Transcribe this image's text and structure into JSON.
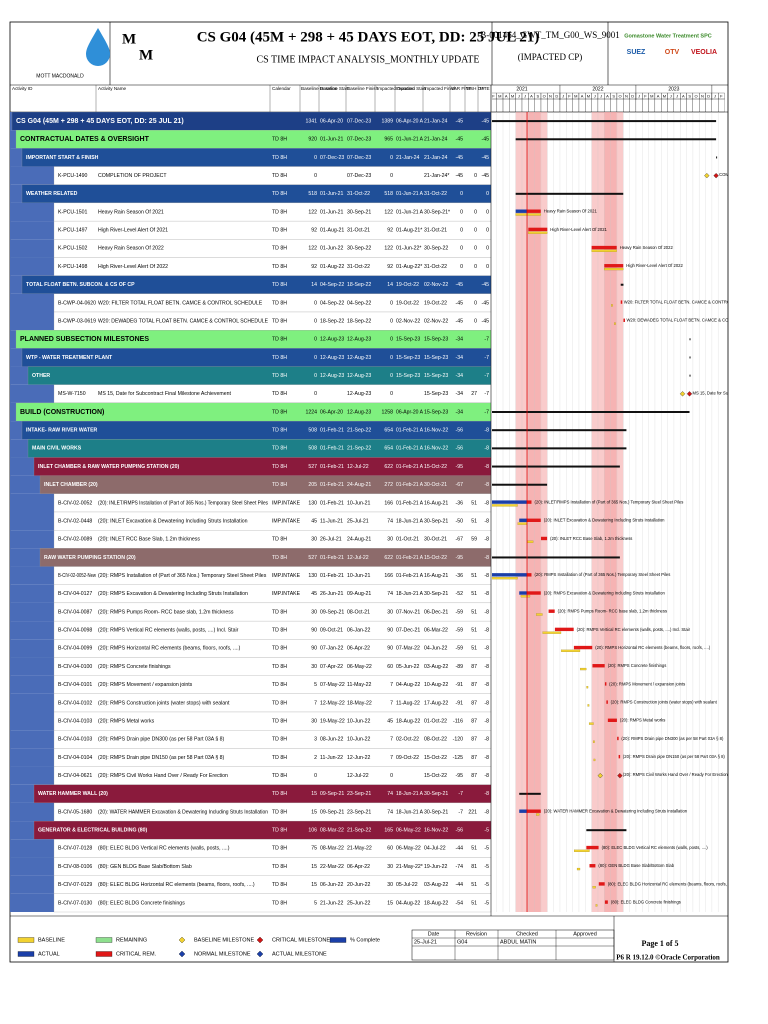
{
  "header": {
    "logo_letters": [
      "M",
      "M"
    ],
    "logo_name": "MOTT MACDONALD",
    "title": "CS G04 (45M + 298 + 45 DAYS EOT, DD: 25 JUL 21)",
    "subtitle": "CS TIME IMPACT ANALYSIS_MONTHLY UPDATE",
    "doc_id": "B-001464_GWT_TM_G00_WS_9001",
    "doc_status": "(IMPACTED CP)",
    "partners": [
      "Gomastone Water Treatment SPC",
      "SUEZ",
      "OTV",
      "VEOLIA"
    ]
  },
  "columns": [
    "Activity ID",
    "Activity Name",
    "Calendar",
    "Baseline Duration",
    "Baseline Start",
    "Baseline Finish",
    "Impacted Duration",
    "Impacted Start",
    "Impacted Finish",
    "VAR FINISH DATE",
    "TF",
    "TF"
  ],
  "timeline": {
    "years": [
      "2021",
      "2022",
      "2023",
      "2024"
    ],
    "months": [
      "F",
      "M",
      "A",
      "M",
      "J",
      "J",
      "A",
      "S",
      "O",
      "N",
      "D",
      "J",
      "F",
      "M",
      "A",
      "M",
      "J",
      "J",
      "A",
      "S",
      "O",
      "N",
      "D",
      "J",
      "F",
      "M",
      "A",
      "M",
      "J",
      "J",
      "A",
      "S",
      "O",
      "N",
      "D",
      "J",
      "F"
    ]
  },
  "rows": [
    {
      "fill": "#1d3f86",
      "cells": [
        null,
        "CS G04 (45M + 298 + 45 DAYS EOT, DD: 25 JUL 21)",
        null,
        1341,
        "06-Apr-20",
        "07-Dec-23",
        1389,
        "06-Apr-20 A",
        "21-Jan-24",
        -45,
        null,
        -45
      ]
    },
    {
      "fill": "#7ff07f",
      "cells": [
        null,
        "CONTRACTUAL DATES & OVERSIGHT",
        "TD 8H",
        920,
        "01-Jun-21",
        "07-Dec-23",
        965,
        "01-Jun-21 A",
        "21-Jan-24",
        -45,
        null,
        -45
      ]
    },
    {
      "fill": "#1f4f98",
      "cells": [
        null,
        "IMPORTANT START & FINISH",
        "TD 8H",
        0,
        "07-Dec-23",
        "07-Dec-23",
        0,
        "21-Jan-24",
        "21-Jan-24",
        -45,
        null,
        -45
      ]
    },
    {
      "cells": [
        "K-PCU-1490",
        "COMPLETION OF PROJECT",
        "TD 8H",
        0,
        null,
        "07-Dec-23",
        0,
        null,
        "21-Jan-24*",
        -45,
        0,
        -45
      ]
    },
    {
      "fill": "#1f4f98",
      "cells": [
        null,
        "WEATHER RELATED",
        "TD 8H",
        518,
        "01-Jun-21",
        "31-Oct-22",
        518,
        "01-Jun-21 A",
        "31-Oct-22",
        0,
        null,
        0
      ]
    },
    {
      "cells": [
        "K-PCU-1501",
        "Heavy Rain Season Of 2021",
        "TD 8H",
        122,
        "01-Jun-21",
        "30-Sep-21",
        122,
        "01-Jun-21 A",
        "30-Sep-21*",
        0,
        0,
        0
      ]
    },
    {
      "cells": [
        "K-PCU-1497",
        "High River-Level Alert Of 2021",
        "TD 8H",
        92,
        "01-Aug-21",
        "31-Oct-21",
        92,
        "01-Aug-21*",
        "31-Oct-21",
        0,
        0,
        0
      ]
    },
    {
      "cells": [
        "K-PCU-1502",
        "Heavy Rain Season Of 2022",
        "TD 8H",
        122,
        "01-Jun-22",
        "30-Sep-22",
        122,
        "01-Jun-22*",
        "30-Sep-22",
        0,
        0,
        0
      ]
    },
    {
      "cells": [
        "K-PCU-1498",
        "High River-Level Alert Of 2022",
        "TD 8H",
        92,
        "01-Aug-22",
        "31-Oct-22",
        92,
        "01-Aug-22*",
        "31-Oct-22",
        0,
        0,
        0
      ]
    },
    {
      "fill": "#1f4f98",
      "cells": [
        null,
        "TOTAL FLOAT BETN. SUBCON. & CS OF CP",
        "TD 8H",
        14,
        "04-Sep-22",
        "18-Sep-22",
        14,
        "19-Oct-22",
        "02-Nov-22",
        -45,
        null,
        -45
      ]
    },
    {
      "cells": [
        "B-CWP-04-0620",
        "W20: FILTER TOTAL FLOAT BETN. CAMCE & CONTROL SCHEDULE",
        "TD 8H",
        0,
        "04-Sep-22",
        "04-Sep-22",
        0,
        "19-Oct-22",
        "19-Oct-22",
        -45,
        0,
        -45
      ]
    },
    {
      "cells": [
        "B-CWP-03-0619",
        "W20: DEWADEG TOTAL FLOAT BETN. CAMCE & CONTROL SCHEDULE",
        "TD 8H",
        0,
        "18-Sep-22",
        "18-Sep-22",
        0,
        "02-Nov-22",
        "02-Nov-22",
        -45,
        0,
        -45
      ]
    },
    {
      "fill": "#7ff07f",
      "cells": [
        null,
        "PLANNED SUBSECTION MILESTONES",
        "TD 8H",
        0,
        "12-Aug-23",
        "12-Aug-23",
        0,
        "15-Sep-23",
        "15-Sep-23",
        -34,
        null,
        -7
      ]
    },
    {
      "fill": "#1f4f98",
      "cells": [
        null,
        "WTP - WATER TREATMENT PLANT",
        "TD 8H",
        0,
        "12-Aug-23",
        "12-Aug-23",
        0,
        "15-Sep-23",
        "15-Sep-23",
        -34,
        null,
        -7
      ]
    },
    {
      "fill": "#1d7f88",
      "cells": [
        null,
        "OTHER",
        "TD 8H",
        0,
        "12-Aug-23",
        "12-Aug-23",
        0,
        "15-Sep-23",
        "15-Sep-23",
        -34,
        null,
        -7
      ]
    },
    {
      "cells": [
        "MS-W-7150",
        "MS 15, Date for Subcontract Final Milestone Achievement",
        "TD 8H",
        0,
        null,
        "12-Aug-23",
        0,
        null,
        "15-Sep-23",
        -34,
        27,
        -7
      ]
    },
    {
      "fill": "#7ff07f",
      "cells": [
        null,
        "BUILD (CONSTRUCTION)",
        "TD 8H",
        1224,
        "06-Apr-20",
        "12-Aug-23",
        1258,
        "06-Apr-20 A",
        "15-Sep-23",
        -34,
        null,
        -7
      ]
    },
    {
      "fill": "#1f4f98",
      "cells": [
        null,
        "INTAKE- RAW RIVER WATER",
        "TD 8H",
        508,
        "01-Feb-21",
        "21-Sep-22",
        654,
        "01-Feb-21 A",
        "16-Nov-22",
        -56,
        null,
        -8
      ]
    },
    {
      "fill": "#1d7f88",
      "cells": [
        null,
        "MAIN CIVIL WORKS",
        "TD 8H",
        508,
        "01-Feb-21",
        "21-Sep-22",
        654,
        "01-Feb-21 A",
        "16-Nov-22",
        -56,
        null,
        -8
      ]
    },
    {
      "fill": "#8a1a3c",
      "cells": [
        null,
        "INLET CHAMBER & RAW WATER PUMPING STATION (20)",
        "TD 8H",
        527,
        "01-Feb-21",
        "12-Jul-22",
        622,
        "01-Feb-21 A",
        "15-Oct-22",
        -95,
        null,
        -8
      ]
    },
    {
      "fill": "#8d6b6b",
      "cells": [
        null,
        "INLET CHAMBER (20)",
        "TD 8H",
        205,
        "01-Feb-21",
        "24-Aug-21",
        272,
        "01-Feb-21 A",
        "30-Oct-21",
        -67,
        null,
        -8
      ]
    },
    {
      "cells": [
        "B-CIV-02-0052",
        "(20): INLET/RMPS Installation of (Part of 365 Nos.) Temporary Steel Sheet Piles",
        "IMP.INTAKE",
        130,
        "01-Feb-21",
        "10-Jun-21",
        166,
        "01-Feb-21 A",
        "16-Aug-21",
        -36,
        51,
        -8
      ]
    },
    {
      "cells": [
        "B-CIV-02-0448",
        "(20): INLET Excavation & Dewatering Including Struts Installation",
        "IMP.INTAKE",
        45,
        "11-Jun-21",
        "25-Jul-21",
        74,
        "18-Jun-21 A",
        "30-Sep-21",
        -50,
        51,
        -8
      ]
    },
    {
      "cells": [
        "B-CIV-02-0089",
        "(20): INLET RCC Base Slab, 1.2m thickness",
        "TD 8H",
        30,
        "26-Jul-21",
        "24-Aug-21",
        30,
        "01-Oct-21",
        "30-Oct-21",
        -67,
        59,
        -8
      ]
    },
    {
      "fill": "#8d6b6b",
      "cells": [
        null,
        "RAW WATER PUMPING STATION (20)",
        "TD 8H",
        527,
        "01-Feb-21",
        "12-Jul-22",
        622,
        "01-Feb-21 A",
        "15-Oct-22",
        -95,
        null,
        -8
      ]
    },
    {
      "cells": [
        "B-CIV-02-0052-New",
        "(20): RMPS Installation of (Part of 365 Nos.) Temporary Steel Sheet Piles",
        "IMP.INTAKE",
        130,
        "01-Feb-21",
        "10-Jun-21",
        166,
        "01-Feb-21 A",
        "16-Aug-21",
        -36,
        51,
        -8
      ]
    },
    {
      "cells": [
        "B-CIV-04-0127",
        "(20): RMPS Excavation & Dewatering Including Struts Installation",
        "IMP.INTAKE",
        45,
        "26-Jun-21",
        "09-Aug-21",
        74,
        "18-Jun-21 A",
        "30-Sep-21",
        -52,
        51,
        -8
      ]
    },
    {
      "cells": [
        "B-CIV-04-0087",
        "(20): RMPS Pumps Room- RCC base slab, 1.2m thickness",
        "TD 8H",
        30,
        "09-Sep-21",
        "08-Oct-21",
        30,
        "07-Nov-21",
        "06-Dec-21",
        -59,
        51,
        -8
      ]
    },
    {
      "cells": [
        "B-CIV-04-0098",
        "(20): RMPS Vertical RC elements (walls, posts, ....) Incl. Stair",
        "TD 8H",
        90,
        "09-Oct-21",
        "06-Jan-22",
        90,
        "07-Dec-21",
        "06-Mar-22",
        -59,
        51,
        -8
      ]
    },
    {
      "cells": [
        "B-CIV-04-0099",
        "(20): RMPS Horizontal RC elements (beams, floors, roofs, ....)",
        "TD 8H",
        90,
        "07-Jan-22",
        "06-Apr-22",
        90,
        "07-Mar-22",
        "04-Jun-22",
        -59,
        51,
        -8
      ]
    },
    {
      "cells": [
        "B-CIV-04-0100",
        "(20): RMPS Concrete finishings",
        "TD 8H",
        30,
        "07-Apr-22",
        "06-May-22",
        60,
        "05-Jun-22",
        "03-Aug-22",
        -89,
        87,
        -8
      ]
    },
    {
      "cells": [
        "B-CIV-04-0101",
        "(20): RMPS Movement / expansion joints",
        "TD 8H",
        5,
        "07-May-22",
        "11-May-22",
        7,
        "04-Aug-22",
        "10-Aug-22",
        -91,
        87,
        -8
      ]
    },
    {
      "cells": [
        "B-CIV-04-0102",
        "(20): RMPS Construction joints (water stops) with sealant",
        "TD 8H",
        7,
        "12-May-22",
        "18-May-22",
        7,
        "11-Aug-22",
        "17-Aug-22",
        -91,
        87,
        -8
      ]
    },
    {
      "cells": [
        "B-CIV-04-0103",
        "(20): RMPS Metal works",
        "TD 8H",
        30,
        "19-May-22",
        "10-Jun-22",
        45,
        "18-Aug-22",
        "01-Oct-22",
        -116,
        87,
        -8
      ]
    },
    {
      "cells": [
        "B-CIV-04-0103",
        "(20): RMPS Drain pipe DN300 (as per 58 Part 03A § 8)",
        "TD 8H",
        3,
        "08-Jun-22",
        "10-Jun-22",
        7,
        "02-Oct-22",
        "08-Oct-22",
        -120,
        87,
        -8
      ]
    },
    {
      "cells": [
        "B-CIV-04-0104",
        "(20): RMPS Drain pipe DN150 (as per 58 Part 03A § 8)",
        "TD 8H",
        2,
        "11-Jun-22",
        "12-Jun-22",
        7,
        "09-Oct-22",
        "15-Oct-22",
        -125,
        87,
        -8
      ]
    },
    {
      "cells": [
        "B-CIV-04-0621",
        "(20): RMPS Civil Works Hand Over / Ready For Erection",
        "TD 8H",
        0,
        null,
        "12-Jul-22",
        0,
        null,
        "15-Oct-22",
        -95,
        87,
        -8
      ]
    },
    {
      "fill": "#8a1a3c",
      "cells": [
        null,
        "WATER HAMMER WALL (20)",
        "TD 8H",
        15,
        "09-Sep-21",
        "23-Sep-21",
        74,
        "18-Jun-21 A",
        "30-Sep-21",
        -7,
        null,
        -8
      ]
    },
    {
      "cells": [
        "B-CIV-05-1680",
        "(20): WATER HAMMER Excavation & Dewatering Including Struts Installation",
        "TD 8H",
        15,
        "09-Sep-21",
        "23-Sep-21",
        74,
        "18-Jun-21 A",
        "30-Sep-21",
        -7,
        221,
        -8
      ]
    },
    {
      "fill": "#8a1a3c",
      "cells": [
        null,
        "GENERATOR & ELECTRICAL BUILDING (80)",
        "TD 8H",
        106,
        "08-Mar-22",
        "21-Sep-22",
        165,
        "06-May-22",
        "16-Nov-22",
        -56,
        null,
        -5
      ]
    },
    {
      "cells": [
        "B-CIV-07-0128",
        "(80): ELEC BLDG Vertical RC elements (walls, posts, ....)",
        "TD 8H",
        75,
        "08-Mar-22",
        "21-May-22",
        60,
        "06-May-22",
        "04-Jul-22",
        -44,
        51,
        -5
      ]
    },
    {
      "cells": [
        "B-CIV-08-0106",
        "(80): GEN BLDG Base Slab/Bottom Slab",
        "TD 8H",
        15,
        "22-Mar-22",
        "06-Apr-22",
        30,
        "21-May-22*",
        "19-Jun-22",
        -74,
        81,
        -5
      ]
    },
    {
      "cells": [
        "B-CIV-07-0129",
        "(80): ELEC BLDG Horizontal RC elements (beams, floors, roofs, ....)",
        "TD 8H",
        15,
        "06-Jun-22",
        "20-Jun-22",
        30,
        "05-Jul-22",
        "03-Aug-22",
        -44,
        51,
        -5
      ]
    },
    {
      "cells": [
        "B-CIV-07-0130",
        "(80): ELEC BLDG Concrete finishings",
        "TD 8H",
        5,
        "21-Jun-22",
        "25-Jun-22",
        15,
        "04-Aug-22",
        "18-Aug-22",
        -54,
        51,
        -5
      ]
    }
  ],
  "legend": [
    {
      "label": "BASELINE",
      "color": "#f2d230",
      "shape": "bar"
    },
    {
      "label": "REMAINING",
      "color": "#8ee08e",
      "shape": "bar"
    },
    {
      "label": "BASELINE MILESTONE",
      "color": "#f2d230",
      "shape": "diamond"
    },
    {
      "label": "CRITICAL MILESTONE",
      "color": "#d01515",
      "shape": "diamond"
    },
    {
      "label": "% Complete",
      "color": "#1b3fa8",
      "shape": "bar"
    },
    {
      "label": "ACTUAL",
      "color": "#1b3fa8",
      "shape": "bar"
    },
    {
      "label": "CRITICAL REM.",
      "color": "#e01818",
      "shape": "bar"
    },
    {
      "label": "NORMAL MILESTONE",
      "color": "#1b3fa8",
      "shape": "diamond"
    },
    {
      "label": "ACTUAL MILESTONE",
      "color": "#1b3fa8",
      "shape": "diamond"
    }
  ],
  "footer": {
    "headers": [
      "Date",
      "Revision",
      "Checked",
      "Approved"
    ],
    "values": [
      "25-Jul-21",
      "G04",
      "ABDUL MATIN"
    ],
    "page": "Page 1 of 5",
    "software": "P6 R 19.12.0 ©Oracle Corporation"
  }
}
